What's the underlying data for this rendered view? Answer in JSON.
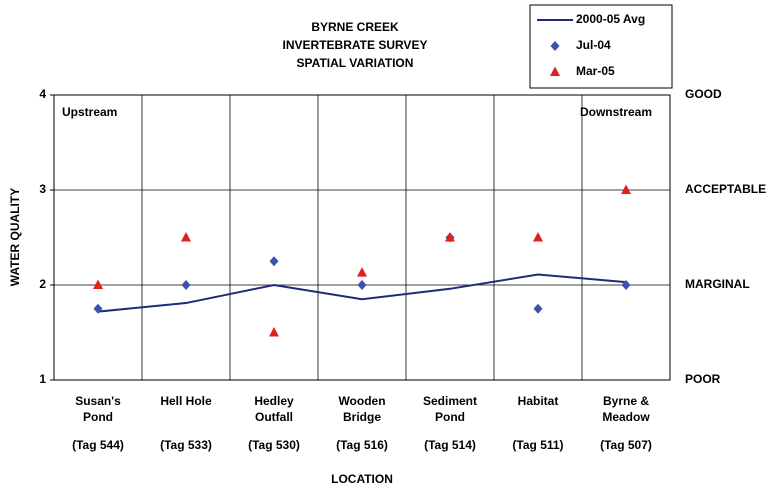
{
  "chart_data": {
    "type": "line",
    "title": [
      "BYRNE CREEK",
      "INVERTEBRATE SURVEY",
      "SPATIAL VARIATION"
    ],
    "x_label": "LOCATION",
    "y_label": "WATER QUALITY",
    "annotations": [
      "Upstream",
      "Downstream"
    ],
    "categories": [
      [
        "Susan's",
        "Pond",
        "(Tag 544)"
      ],
      [
        "Hell Hole",
        "(Tag 533)"
      ],
      [
        "Hedley",
        "Outfall",
        "(Tag 530)"
      ],
      [
        "Wooden",
        "Bridge",
        "(Tag 516)"
      ],
      [
        "Sediment",
        "Pond",
        "(Tag 514)"
      ],
      [
        "Habitat",
        "(Tag 511)"
      ],
      [
        "Byrne &",
        "Meadow",
        "(Tag 507)"
      ]
    ],
    "series": [
      {
        "name": "2000-05 Avg",
        "color": "#1f2a7a",
        "marker": "line",
        "values": [
          1.72,
          1.81,
          2.0,
          1.85,
          1.96,
          2.11,
          2.03
        ]
      },
      {
        "name": "Jul-04",
        "color": "#3a52a8",
        "marker": "diamond",
        "values": [
          1.75,
          2.0,
          2.25,
          2.0,
          2.5,
          1.75,
          2.0
        ]
      },
      {
        "name": "Mar-05",
        "color": "#e02020",
        "marker": "triangle",
        "values": [
          2.0,
          2.5,
          1.5,
          2.13,
          2.5,
          2.5,
          3.0
        ]
      }
    ],
    "ylim": [
      1,
      4
    ],
    "yticks": [
      1,
      2,
      3,
      4
    ],
    "y2lim": [
      1,
      4
    ],
    "y2ticks": [
      {
        "value": 1,
        "label": "POOR"
      },
      {
        "value": 2,
        "label": "MARGINAL"
      },
      {
        "value": 3,
        "label": "ACCEPTABLE"
      },
      {
        "value": 4,
        "label": "GOOD"
      }
    ],
    "grid": true,
    "legend": "top-right"
  }
}
